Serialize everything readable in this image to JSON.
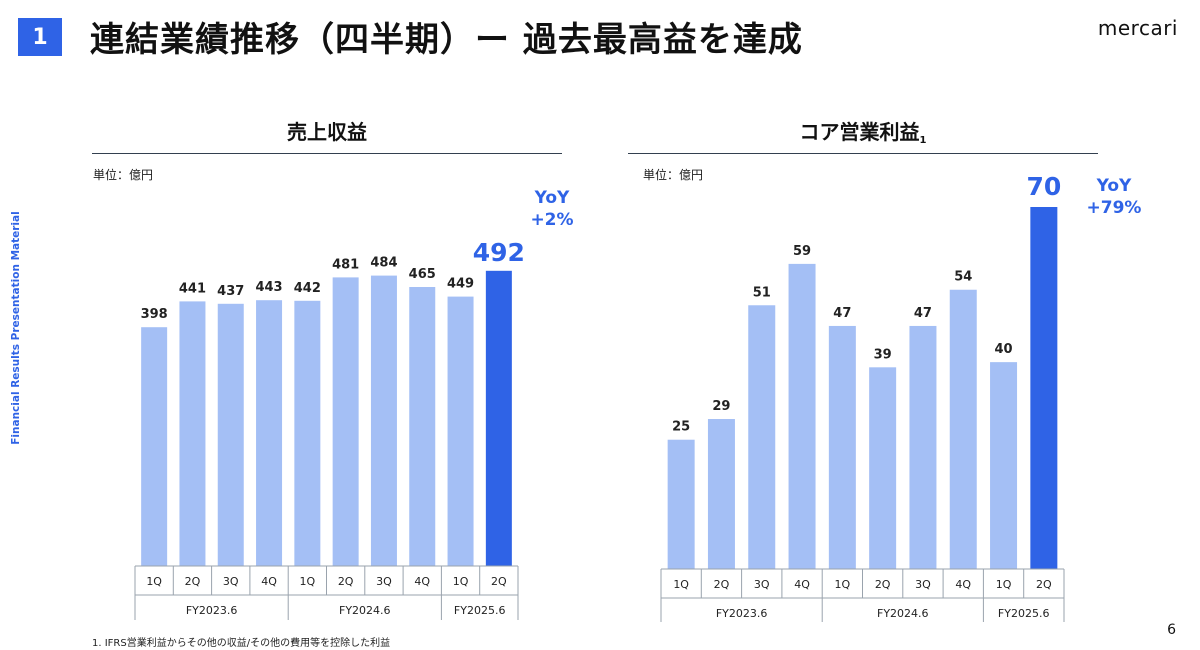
{
  "header": {
    "section_number": "1",
    "title": "連結業績推移（四半期）ー 過去最高益を達成",
    "logo_text": "mercari"
  },
  "side_label": "Financial Results Presentation Material",
  "footnote": "1. IFRS営業利益からその他の収益/その他の費用等を控除した利益",
  "page_number": "6",
  "colors": {
    "bar": "#a4bff5",
    "highlight": "#2f63e6",
    "accent_text": "#2f63e6"
  },
  "chart_data": [
    {
      "type": "bar",
      "title": "売上収益",
      "title_superscript": "",
      "unit": "単位：億円",
      "categories": [
        "1Q",
        "2Q",
        "3Q",
        "4Q",
        "1Q",
        "2Q",
        "3Q",
        "4Q",
        "1Q",
        "2Q"
      ],
      "groups": [
        {
          "label": "FY2023.6",
          "count": 4
        },
        {
          "label": "FY2024.6",
          "count": 4
        },
        {
          "label": "FY2025.6",
          "count": 2
        }
      ],
      "values": [
        398,
        441,
        437,
        443,
        442,
        481,
        484,
        465,
        449,
        492
      ],
      "highlight_index": 9,
      "yoy": {
        "label": "YoY",
        "value": "+2%"
      },
      "ylim": [
        0,
        560
      ]
    },
    {
      "type": "bar",
      "title": "コア営業利益",
      "title_superscript": "1",
      "unit": "単位：億円",
      "categories": [
        "1Q",
        "2Q",
        "3Q",
        "4Q",
        "1Q",
        "2Q",
        "3Q",
        "4Q",
        "1Q",
        "2Q"
      ],
      "groups": [
        {
          "label": "FY2023.6",
          "count": 4
        },
        {
          "label": "FY2024.6",
          "count": 4
        },
        {
          "label": "FY2025.6",
          "count": 2
        }
      ],
      "values": [
        25,
        29,
        51,
        59,
        47,
        39,
        47,
        54,
        40,
        70
      ],
      "highlight_index": 9,
      "yoy": {
        "label": "YoY",
        "value": "+79%"
      },
      "ylim": [
        0,
        70
      ]
    }
  ]
}
